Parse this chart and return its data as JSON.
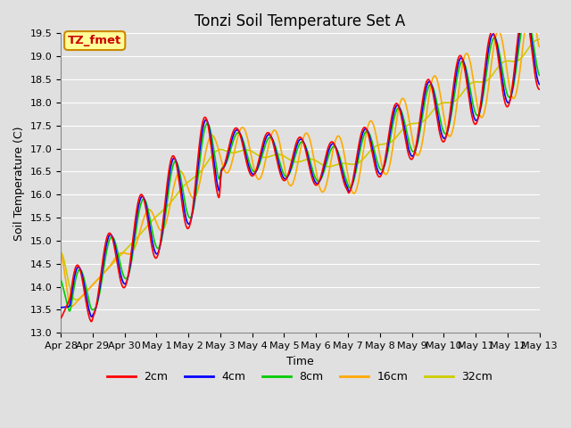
{
  "title": "Tonzi Soil Temperature Set A",
  "xlabel": "Time",
  "ylabel": "Soil Temperature (C)",
  "ylim": [
    13.0,
    19.5
  ],
  "label_box_text": "TZ_fmet",
  "label_box_color": "#ffff99",
  "label_box_border": "#cc8800",
  "label_text_color": "#cc0000",
  "series_colors": [
    "#ff0000",
    "#0000ff",
    "#00cc00",
    "#ffaa00",
    "#cccc00"
  ],
  "series_labels": [
    "2cm",
    "4cm",
    "8cm",
    "16cm",
    "32cm"
  ],
  "background_color": "#e0e0e0",
  "plot_bg_color": "#e0e0e0",
  "grid_color": "#ffffff",
  "tick_labels": [
    "Apr 28",
    "Apr 29",
    "Apr 30",
    "May 1",
    "May 2",
    "May 3",
    "May 4",
    "May 5",
    "May 6",
    "May 7",
    "May 8",
    "May 9",
    "May 10",
    "May 11",
    "May 12",
    "May 13"
  ],
  "n_points": 1440,
  "start_day": 0,
  "end_day": 15.0,
  "title_fontsize": 12,
  "axis_fontsize": 9,
  "tick_fontsize": 8,
  "legend_fontsize": 9,
  "line_width": 1.2
}
